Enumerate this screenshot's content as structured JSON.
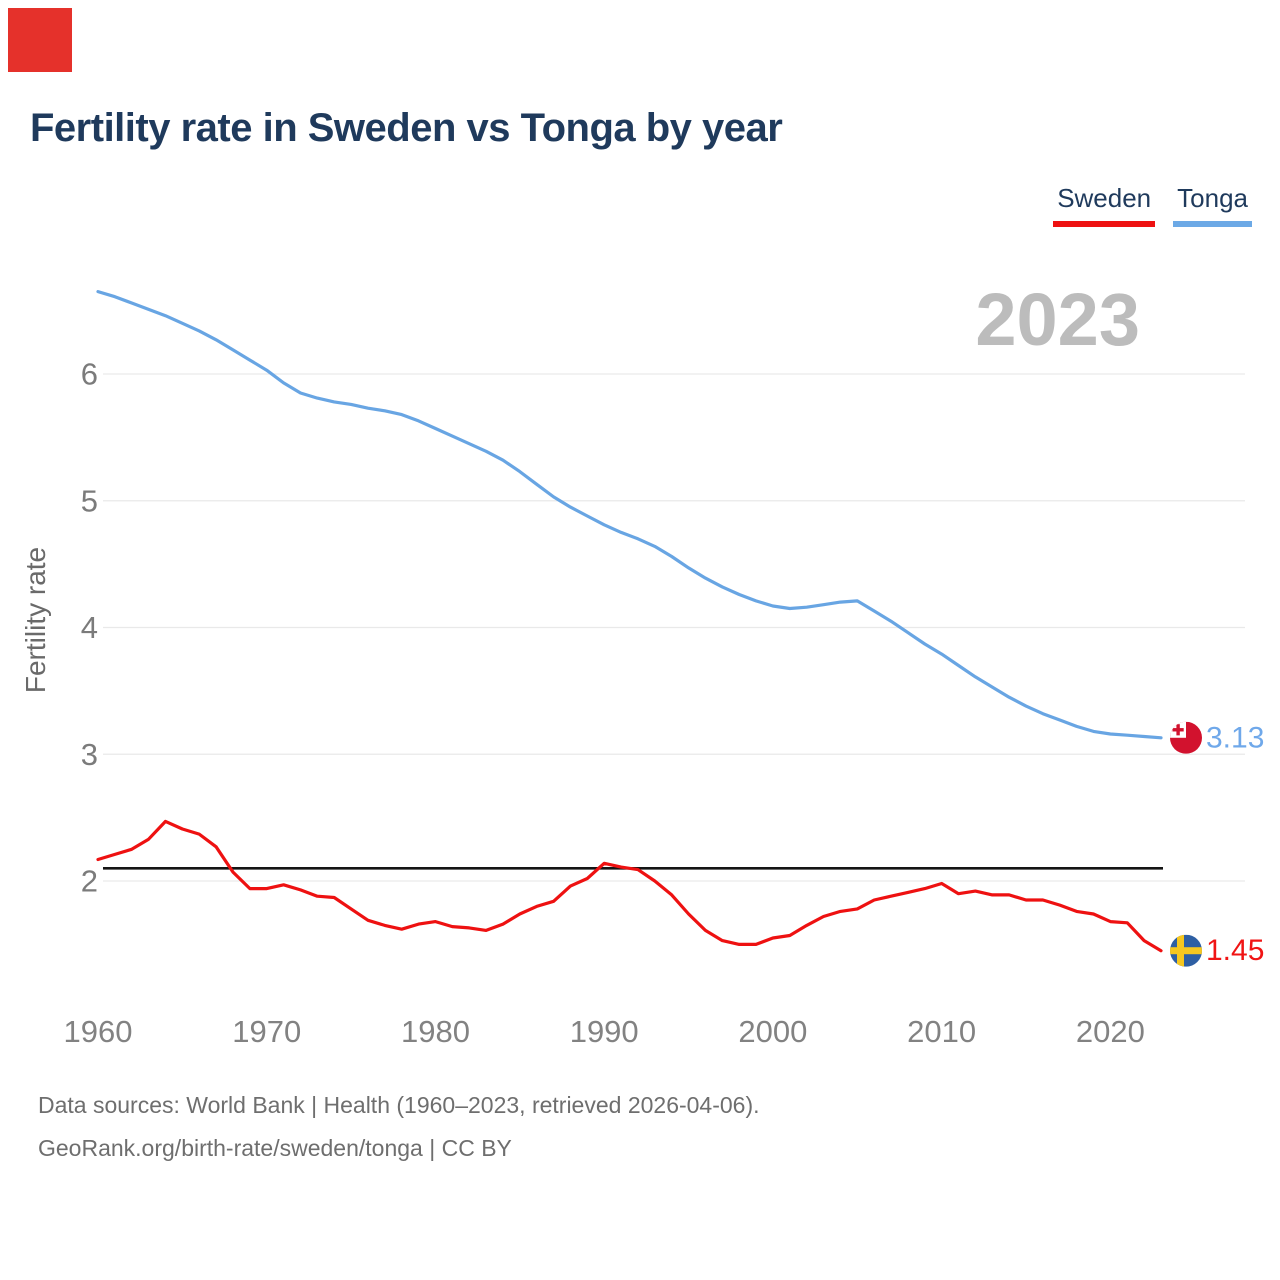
{
  "logo": {
    "color": "#e5312b"
  },
  "header": {
    "title": "Fertility rate in Sweden vs Tonga by year"
  },
  "legend": [
    {
      "label": "Sweden",
      "color": "#ee1111"
    },
    {
      "label": "Tonga",
      "color": "#6ca9e6"
    }
  ],
  "footer": {
    "line1": "Data sources: World Bank | Health (1960–2023, retrieved 2026-04-06).",
    "line2": "GeoRank.org/birth-rate/sweden/tonga | CC BY"
  },
  "chart_data": {
    "type": "line",
    "title": "Fertility rate in Sweden vs Tonga by year",
    "ylabel": "Fertility rate",
    "year_label": "2023",
    "x": [
      1960,
      1961,
      1962,
      1963,
      1964,
      1965,
      1966,
      1967,
      1968,
      1969,
      1970,
      1971,
      1972,
      1973,
      1974,
      1975,
      1976,
      1977,
      1978,
      1979,
      1980,
      1981,
      1982,
      1983,
      1984,
      1985,
      1986,
      1987,
      1988,
      1989,
      1990,
      1991,
      1992,
      1993,
      1994,
      1995,
      1996,
      1997,
      1998,
      1999,
      2000,
      2001,
      2002,
      2003,
      2004,
      2005,
      2006,
      2007,
      2008,
      2009,
      2010,
      2011,
      2012,
      2013,
      2014,
      2015,
      2016,
      2017,
      2018,
      2019,
      2020,
      2021,
      2022,
      2023
    ],
    "series": [
      {
        "name": "Tonga",
        "color": "#68a5e3",
        "end_label": "3.13",
        "end_label_color": "#6fa8ea",
        "flag": "tonga",
        "values": [
          6.65,
          6.61,
          6.56,
          6.51,
          6.46,
          6.4,
          6.34,
          6.27,
          6.19,
          6.11,
          6.03,
          5.93,
          5.85,
          5.81,
          5.78,
          5.76,
          5.73,
          5.71,
          5.68,
          5.63,
          5.57,
          5.51,
          5.45,
          5.39,
          5.32,
          5.23,
          5.13,
          5.03,
          4.95,
          4.88,
          4.81,
          4.75,
          4.7,
          4.64,
          4.56,
          4.47,
          4.39,
          4.32,
          4.26,
          4.21,
          4.17,
          4.15,
          4.16,
          4.18,
          4.2,
          4.21,
          4.13,
          4.05,
          3.96,
          3.87,
          3.79,
          3.7,
          3.61,
          3.53,
          3.45,
          3.38,
          3.32,
          3.27,
          3.22,
          3.18,
          3.16,
          3.15,
          3.14,
          3.13
        ]
      },
      {
        "name": "Sweden",
        "color": "#ee1111",
        "end_label": "1.45",
        "end_label_color": "#f01414",
        "flag": "sweden",
        "values": [
          2.17,
          2.21,
          2.25,
          2.33,
          2.47,
          2.41,
          2.37,
          2.27,
          2.07,
          1.94,
          1.94,
          1.97,
          1.93,
          1.88,
          1.87,
          1.78,
          1.69,
          1.65,
          1.62,
          1.66,
          1.68,
          1.64,
          1.63,
          1.61,
          1.66,
          1.74,
          1.8,
          1.84,
          1.96,
          2.02,
          2.14,
          2.11,
          2.09,
          2.0,
          1.89,
          1.74,
          1.61,
          1.53,
          1.5,
          1.5,
          1.55,
          1.57,
          1.65,
          1.72,
          1.76,
          1.78,
          1.85,
          1.88,
          1.91,
          1.94,
          1.98,
          1.9,
          1.92,
          1.89,
          1.89,
          1.85,
          1.85,
          1.81,
          1.76,
          1.74,
          1.68,
          1.67,
          1.53,
          1.45
        ]
      }
    ],
    "yticks": [
      2,
      3,
      4,
      5,
      6
    ],
    "xticks": [
      1960,
      1970,
      1980,
      1990,
      2000,
      2010,
      2020
    ],
    "ylim": [
      1.25,
      6.9
    ],
    "xlim": [
      1960,
      2023
    ],
    "reference_line": {
      "value": 2.1,
      "color": "#141414"
    },
    "grid": true,
    "legend_position": "top-right",
    "colors": {
      "gridline": "#e9e9e9",
      "tick_label": "#7b7b7b",
      "axis_title": "#6a6a6a",
      "watermark": "#bcbcbc"
    },
    "flags": {
      "tonga": {
        "base": "#d2122e",
        "canton": "#ffffff",
        "cross": "#d2122e"
      },
      "sweden": {
        "base": "#2e5fa3",
        "cross": "#f6c71f"
      }
    }
  }
}
